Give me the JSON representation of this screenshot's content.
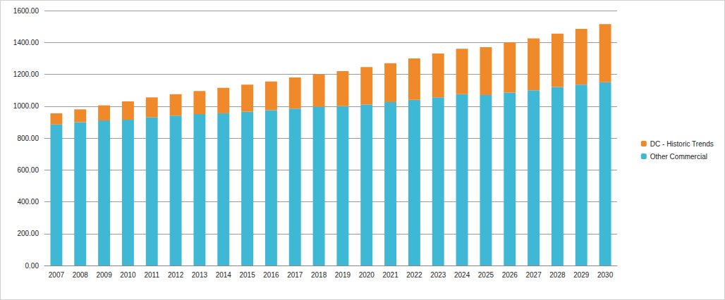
{
  "chart_data": {
    "type": "bar",
    "categories": [
      "2007",
      "2008",
      "2009",
      "2010",
      "2011",
      "2012",
      "2013",
      "2014",
      "2015",
      "2016",
      "2017",
      "2018",
      "2019",
      "2020",
      "2021",
      "2022",
      "2023",
      "2024",
      "2025",
      "2026",
      "2027",
      "2028",
      "2029",
      "2030"
    ],
    "series": [
      {
        "name": "Other Commercial",
        "color": "#3fb8d6",
        "values": [
          885,
          900,
          910,
          915,
          930,
          940,
          950,
          955,
          965,
          975,
          985,
          995,
          1000,
          1010,
          1025,
          1040,
          1055,
          1075,
          1070,
          1085,
          1100,
          1120,
          1135,
          1150
        ]
      },
      {
        "name": "DC - Historic Trends",
        "color": "#f0892a",
        "values": [
          70,
          80,
          95,
          115,
          125,
          135,
          145,
          160,
          170,
          180,
          195,
          205,
          220,
          235,
          245,
          260,
          275,
          285,
          300,
          315,
          325,
          335,
          350,
          365
        ]
      }
    ],
    "ylim": [
      0,
      1600
    ],
    "yticks": [
      {
        "value": 0,
        "label": "0.00"
      },
      {
        "value": 200,
        "label": "200.00"
      },
      {
        "value": 400,
        "label": "400.00"
      },
      {
        "value": 600,
        "label": "600.00"
      },
      {
        "value": 800,
        "label": "800.00"
      },
      {
        "value": 1000,
        "label": "1000.00"
      },
      {
        "value": 1200,
        "label": "1200.00"
      },
      {
        "value": 1400,
        "label": "1400.00"
      },
      {
        "value": 1600,
        "label": "1600.00"
      }
    ],
    "stacked": true,
    "grid": true,
    "legend": "right"
  }
}
